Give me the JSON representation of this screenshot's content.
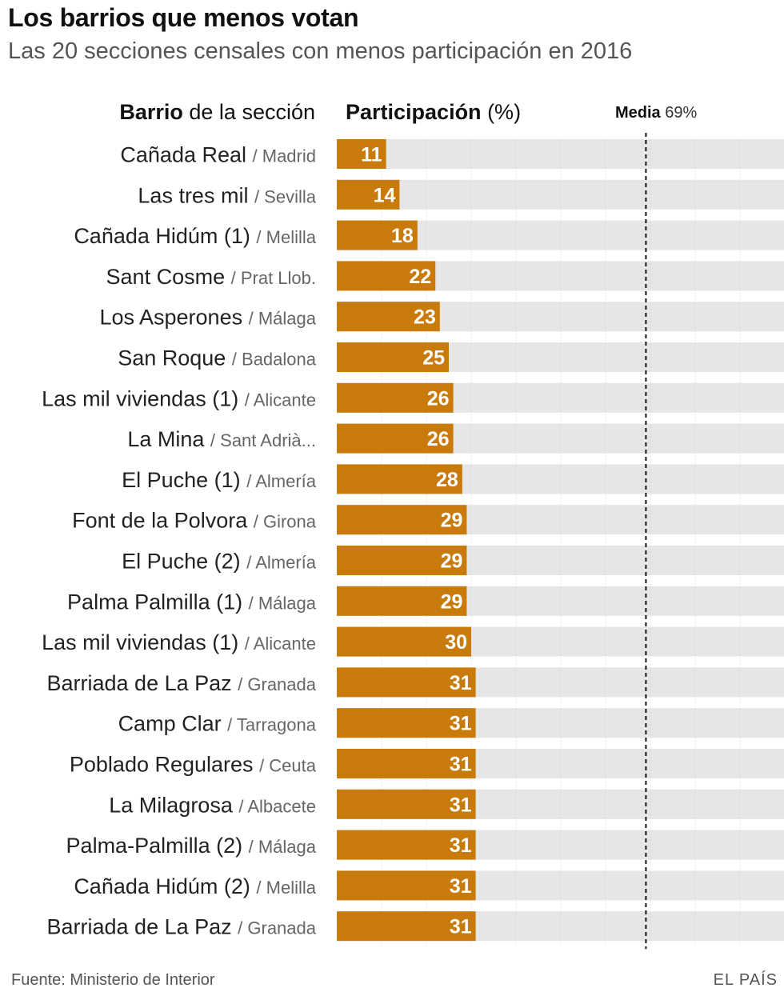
{
  "header": {
    "title": "Los barrios que menos votan",
    "subtitle": "Las 20 secciones censales con menos participación en 2016"
  },
  "column_heads": {
    "left_bold": "Barrio",
    "left_rest": " de la sección",
    "right_bold": "Participación",
    "right_rest": " (%)"
  },
  "reference": {
    "label_bold": "Media",
    "label_value": "69%"
  },
  "footer": {
    "source": "Fuente: Ministerio de Interior",
    "brand": "EL PAÍS"
  },
  "colors": {
    "bar": "#c87b0a",
    "track": "#e6e6e6",
    "label_value": "#ffffff",
    "city": "#666666",
    "name": "#222222"
  },
  "chart_data": {
    "type": "bar",
    "orientation": "horizontal",
    "xlim": [
      0,
      100
    ],
    "reference_line": 69,
    "categories": [
      {
        "name": "Cañada Real",
        "city": "Madrid"
      },
      {
        "name": "Las tres mil",
        "city": "Sevilla"
      },
      {
        "name": "Cañada Hidúm (1)",
        "city": "Melilla"
      },
      {
        "name": "Sant Cosme",
        "city": "Prat Llob."
      },
      {
        "name": "Los Asperones",
        "city": "Málaga"
      },
      {
        "name": "San Roque",
        "city": "Badalona"
      },
      {
        "name": "Las mil viviendas (1)",
        "city": "Alicante"
      },
      {
        "name": "La Mina",
        "city": "Sant Adrià..."
      },
      {
        "name": "El Puche (1)",
        "city": "Almería"
      },
      {
        "name": "Font de la Polvora",
        "city": "Girona"
      },
      {
        "name": "El Puche (2)",
        "city": "Almería"
      },
      {
        "name": "Palma Palmilla (1)",
        "city": "Málaga"
      },
      {
        "name": "Las mil viviendas (1)",
        "city": "Alicante"
      },
      {
        "name": "Barriada de La Paz",
        "city": "Granada"
      },
      {
        "name": "Camp Clar",
        "city": "Tarragona"
      },
      {
        "name": "Poblado Regulares",
        "city": "Ceuta"
      },
      {
        "name": "La Milagrosa",
        "city": "Albacete"
      },
      {
        "name": "Palma-Palmilla (2)",
        "city": "Málaga"
      },
      {
        "name": "Cañada Hidúm (2)",
        "city": "Melilla"
      },
      {
        "name": "Barriada de La Paz",
        "city": "Granada"
      }
    ],
    "values": [
      11,
      14,
      18,
      22,
      23,
      25,
      26,
      26,
      28,
      29,
      29,
      29,
      30,
      31,
      31,
      31,
      31,
      31,
      31,
      31
    ]
  }
}
